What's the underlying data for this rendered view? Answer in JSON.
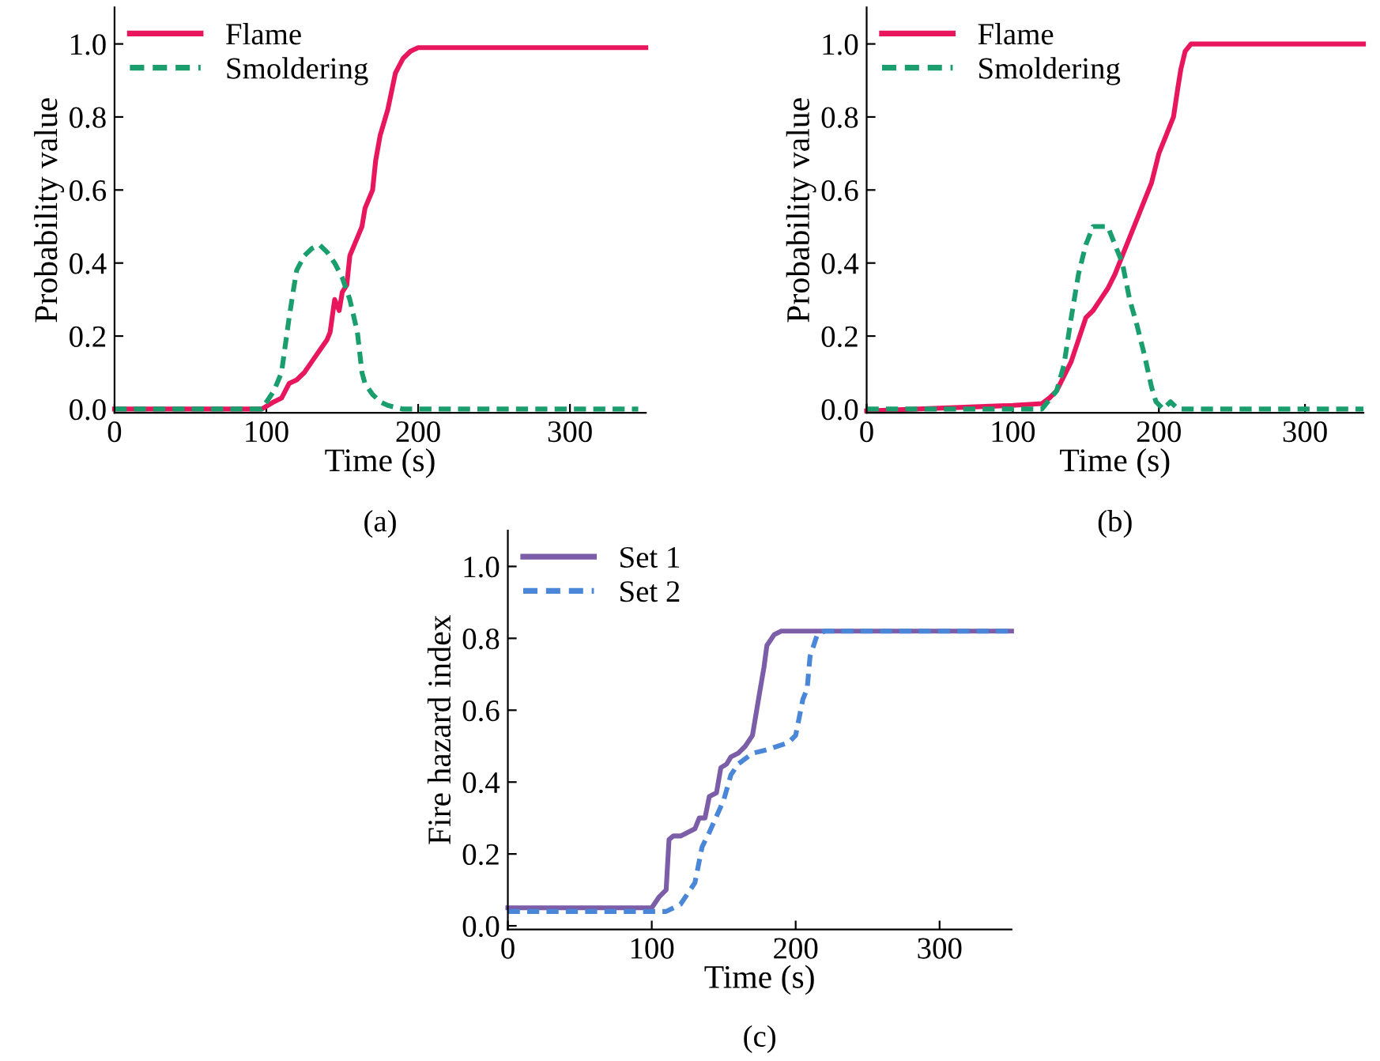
{
  "chart_data": [
    {
      "type": "line",
      "xlabel": "Time (s)",
      "ylabel": "Probability value",
      "annotations": [
        "(a)"
      ],
      "xlim": [
        0,
        350
      ],
      "ylim": [
        -0.01,
        1.1
      ],
      "xticks": [
        0,
        100,
        200,
        300
      ],
      "yticks": [
        {
          "value": 0,
          "label": "0.0"
        },
        {
          "value": 0.2,
          "label": "0.2"
        },
        {
          "value": 0.4,
          "label": "0.4"
        },
        {
          "value": 0.6,
          "label": "0.6"
        },
        {
          "value": 0.8,
          "label": "0.8"
        },
        {
          "value": 1,
          "label": "1.0"
        }
      ],
      "grid": false,
      "legend": "top left",
      "marker": "none",
      "series": [
        {
          "name": "Flame",
          "color": "#e8175d",
          "line_style": "solid",
          "x": [
            0,
            97,
            105,
            110,
            115,
            120,
            125,
            130,
            135,
            140,
            142,
            145,
            148,
            150,
            153,
            155,
            160,
            163,
            165,
            170,
            172,
            175,
            180,
            185,
            190,
            195,
            200,
            350
          ],
          "values": [
            0,
            0,
            0.02,
            0.03,
            0.07,
            0.08,
            0.1,
            0.13,
            0.16,
            0.19,
            0.21,
            0.3,
            0.27,
            0.32,
            0.34,
            0.42,
            0.47,
            0.5,
            0.55,
            0.6,
            0.68,
            0.75,
            0.82,
            0.92,
            0.96,
            0.98,
            0.99,
            0.99
          ]
        },
        {
          "name": "Smoldering",
          "color": "#1a9e6e",
          "line_style": "dashed",
          "x": [
            0,
            97,
            105,
            110,
            115,
            118,
            120,
            125,
            130,
            135,
            140,
            145,
            150,
            155,
            160,
            163,
            165,
            170,
            175,
            180,
            190,
            345
          ],
          "values": [
            0,
            0,
            0.05,
            0.1,
            0.25,
            0.33,
            0.38,
            0.42,
            0.44,
            0.45,
            0.43,
            0.4,
            0.36,
            0.3,
            0.21,
            0.1,
            0.07,
            0.04,
            0.02,
            0.01,
            0,
            0
          ]
        }
      ]
    },
    {
      "type": "line",
      "xlabel": "Time (s)",
      "ylabel": "Probability value",
      "annotations": [
        "(b)"
      ],
      "xlim": [
        0,
        340
      ],
      "ylim": [
        -0.01,
        1.1
      ],
      "xticks": [
        0,
        100,
        200,
        300
      ],
      "yticks": [
        {
          "value": 0,
          "label": "0.0"
        },
        {
          "value": 0.2,
          "label": "0.2"
        },
        {
          "value": 0.4,
          "label": "0.4"
        },
        {
          "value": 0.6,
          "label": "0.6"
        },
        {
          "value": 0.8,
          "label": "0.8"
        },
        {
          "value": 1,
          "label": "1.0"
        }
      ],
      "grid": false,
      "legend": "top left",
      "marker": "none",
      "series": [
        {
          "name": "Flame",
          "color": "#e8175d",
          "line_style": "solid",
          "x": [
            0,
            100,
            120,
            125,
            130,
            140,
            150,
            155,
            160,
            165,
            170,
            175,
            180,
            185,
            190,
            195,
            200,
            205,
            208,
            210,
            213,
            215,
            218,
            222,
            340
          ],
          "values": [
            -0.005,
            0.01,
            0.015,
            0.03,
            0.05,
            0.13,
            0.25,
            0.27,
            0.3,
            0.33,
            0.37,
            0.42,
            0.47,
            0.52,
            0.57,
            0.62,
            0.7,
            0.75,
            0.78,
            0.8,
            0.88,
            0.93,
            0.98,
            1.0,
            1.0
          ]
        },
        {
          "name": "Smoldering",
          "color": "#1a9e6e",
          "line_style": "dashed",
          "x": [
            0,
            120,
            130,
            135,
            140,
            145,
            150,
            155,
            160,
            165,
            170,
            175,
            180,
            185,
            190,
            195,
            198,
            203,
            208,
            213,
            340
          ],
          "values": [
            0,
            0,
            0.05,
            0.12,
            0.25,
            0.37,
            0.45,
            0.5,
            0.5,
            0.5,
            0.45,
            0.4,
            0.3,
            0.23,
            0.15,
            0.06,
            0.02,
            0.0,
            0.02,
            0,
            0
          ]
        }
      ]
    },
    {
      "type": "line",
      "xlabel": "Time (s)",
      "ylabel": "Fire hazard index",
      "annotations": [
        "(c)"
      ],
      "xlim": [
        0,
        350
      ],
      "ylim": [
        -0.01,
        1.1
      ],
      "xticks": [
        0,
        100,
        200,
        300
      ],
      "yticks": [
        {
          "value": 0,
          "label": "0.0"
        },
        {
          "value": 0.2,
          "label": "0.2"
        },
        {
          "value": 0.4,
          "label": "0.4"
        },
        {
          "value": 0.6,
          "label": "0.6"
        },
        {
          "value": 0.8,
          "label": "0.8"
        },
        {
          "value": 1,
          "label": "1.0"
        }
      ],
      "grid": false,
      "legend": "top left",
      "marker": "none",
      "series": [
        {
          "name": "Set 1",
          "color": "#7b5ea7",
          "line_style": "solid",
          "x": [
            0,
            100,
            105,
            110,
            112,
            115,
            120,
            130,
            133,
            137,
            140,
            145,
            148,
            152,
            155,
            160,
            165,
            170,
            175,
            178,
            180,
            185,
            190,
            350
          ],
          "values": [
            0.05,
            0.05,
            0.08,
            0.1,
            0.24,
            0.25,
            0.25,
            0.27,
            0.3,
            0.3,
            0.36,
            0.37,
            0.44,
            0.45,
            0.47,
            0.48,
            0.5,
            0.53,
            0.65,
            0.72,
            0.78,
            0.81,
            0.82,
            0.82
          ]
        },
        {
          "name": "Set 2",
          "color": "#4a87d8",
          "line_style": "dashed",
          "x": [
            0,
            100,
            110,
            120,
            130,
            135,
            140,
            150,
            155,
            160,
            170,
            180,
            195,
            200,
            205,
            208,
            210,
            215,
            220,
            350
          ],
          "values": [
            0.04,
            0.04,
            0.04,
            0.06,
            0.12,
            0.22,
            0.26,
            0.35,
            0.42,
            0.45,
            0.48,
            0.49,
            0.51,
            0.53,
            0.63,
            0.66,
            0.75,
            0.81,
            0.82,
            0.82
          ]
        }
      ]
    }
  ]
}
